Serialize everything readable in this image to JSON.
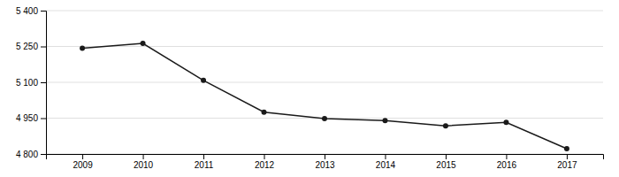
{
  "chart_data": {
    "type": "line",
    "x": [
      2009,
      2010,
      2011,
      2012,
      2013,
      2014,
      2015,
      2016,
      2017
    ],
    "values": [
      5243,
      5263,
      5108,
      4975,
      4948,
      4940,
      4918,
      4932,
      4822
    ],
    "color": "#1a1a1a",
    "marker": "o",
    "xlim": [
      2008.4,
      2017.6
    ],
    "xticks": [
      2009,
      2010,
      2011,
      2012,
      2013,
      2014,
      2015,
      2016,
      2017
    ],
    "ylim": [
      4800,
      5400
    ],
    "yticks": [
      {
        "value": 4800,
        "label": "4 800"
      },
      {
        "value": 4950,
        "label": "4 950"
      },
      {
        "value": 5100,
        "label": "5 100"
      },
      {
        "value": 5250,
        "label": "5 250"
      },
      {
        "value": 5400,
        "label": "5 400"
      }
    ],
    "grid": true
  }
}
